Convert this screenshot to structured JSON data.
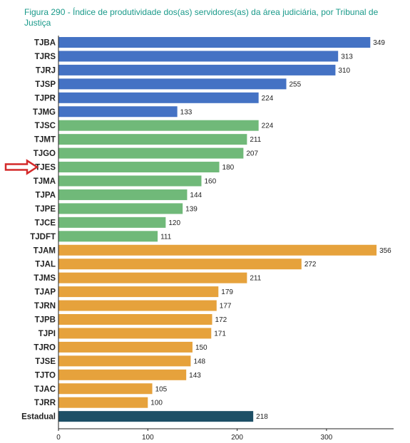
{
  "chart_data": {
    "type": "bar",
    "orientation": "horizontal",
    "title": "Figura 290 - Índice de produtividade dos(as) servidores(as) da área judiciária, por Tribunal de Justiça",
    "categories": [
      "TJBA",
      "TJRS",
      "TJRJ",
      "TJSP",
      "TJPR",
      "TJMG",
      "TJSC",
      "TJMT",
      "TJGO",
      "TJES",
      "TJMA",
      "TJPA",
      "TJPE",
      "TJCE",
      "TJDFT",
      "TJAM",
      "TJAL",
      "TJMS",
      "TJAP",
      "TJRN",
      "TJPB",
      "TJPI",
      "TJRO",
      "TJSE",
      "TJTO",
      "TJAC",
      "TJRR",
      "Estadual"
    ],
    "values": [
      349,
      313,
      310,
      255,
      224,
      133,
      224,
      211,
      207,
      180,
      160,
      144,
      139,
      120,
      111,
      356,
      272,
      211,
      179,
      177,
      172,
      171,
      150,
      148,
      143,
      105,
      100,
      218
    ],
    "groups": [
      "large",
      "large",
      "large",
      "large",
      "large",
      "large",
      "medium",
      "medium",
      "medium",
      "medium",
      "medium",
      "medium",
      "medium",
      "medium",
      "medium",
      "small",
      "small",
      "small",
      "small",
      "small",
      "small",
      "small",
      "small",
      "small",
      "small",
      "small",
      "small",
      "total"
    ],
    "group_colors": {
      "large": "#4472c4",
      "medium": "#70b979",
      "small": "#e6a23c",
      "total": "#1d4f66"
    },
    "xticks": [
      0,
      100,
      200,
      300
    ],
    "xlim": [
      0,
      370
    ],
    "highlight": {
      "category": "TJES",
      "marker": "red-arrow"
    },
    "xlabel": "",
    "ylabel": "",
    "grid": false,
    "legend": "none"
  }
}
